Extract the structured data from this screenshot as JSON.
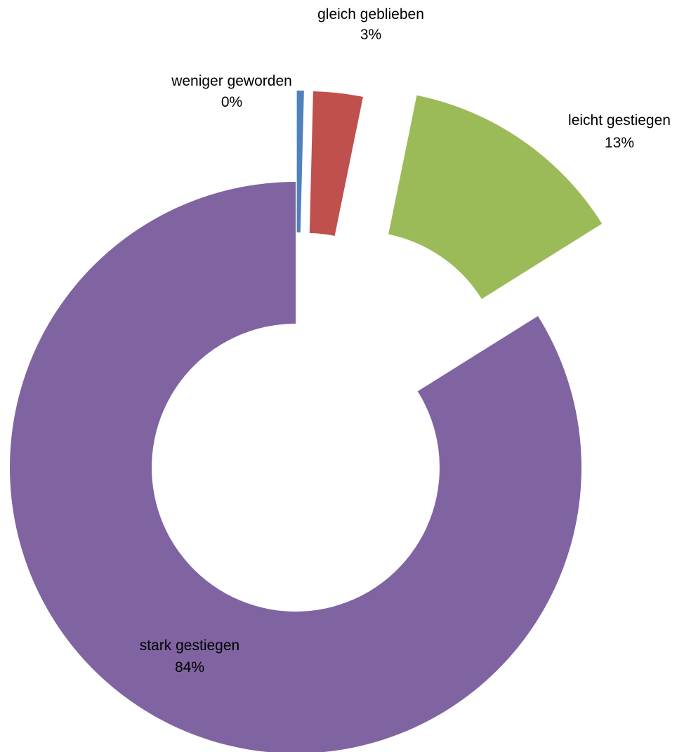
{
  "chart_data": {
    "type": "pie",
    "variant": "exploded-doughnut",
    "categories": [
      "weniger geworden",
      "gleich geblieben",
      "leicht gestiegen",
      "stark gestiegen"
    ],
    "values": [
      0.4,
      2.8,
      12.9,
      83.9
    ],
    "value_labels": [
      "0%",
      "3%",
      "13%",
      "84%"
    ],
    "colors": [
      "#4F81BD",
      "#C0504D",
      "#9BBB59",
      "#8064A2"
    ],
    "legend": "none",
    "labels_position": "outside-near-slice"
  }
}
